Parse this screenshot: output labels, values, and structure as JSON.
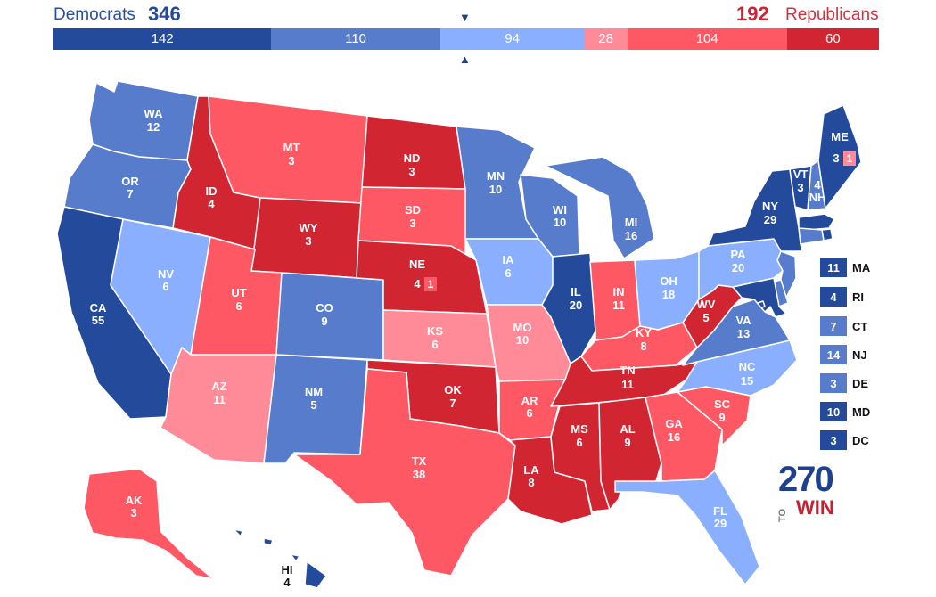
{
  "header": {
    "dem_label": "Democrats",
    "dem_total": "346",
    "rep_total": "192",
    "rep_label": "Republicans"
  },
  "bar": [
    {
      "label": "142",
      "value": 142,
      "color": "#244a9c"
    },
    {
      "label": "110",
      "value": 110,
      "color": "#577ccc"
    },
    {
      "label": "94",
      "value": 94,
      "color": "#8aafff"
    },
    {
      "label": "28",
      "value": 28,
      "color": "#ff8b98"
    },
    {
      "label": "104",
      "value": 104,
      "color": "#ff5865"
    },
    {
      "label": "60",
      "value": 60,
      "color": "#d22532"
    }
  ],
  "colors": {
    "safe_dem": "#244a9c",
    "likely_dem": "#577ccc",
    "lean_dem": "#8aafff",
    "lean_rep": "#ff8b98",
    "likely_rep": "#ff5865",
    "safe_rep": "#d22532"
  },
  "states": [
    {
      "abbr": "WA",
      "ev": "12"
    },
    {
      "abbr": "OR",
      "ev": "7"
    },
    {
      "abbr": "CA",
      "ev": "55"
    },
    {
      "abbr": "NV",
      "ev": "6"
    },
    {
      "abbr": "ID",
      "ev": "4"
    },
    {
      "abbr": "MT",
      "ev": "3"
    },
    {
      "abbr": "WY",
      "ev": "3"
    },
    {
      "abbr": "UT",
      "ev": "6"
    },
    {
      "abbr": "AZ",
      "ev": "11"
    },
    {
      "abbr": "CO",
      "ev": "9"
    },
    {
      "abbr": "NM",
      "ev": "5"
    },
    {
      "abbr": "ND",
      "ev": "3"
    },
    {
      "abbr": "SD",
      "ev": "3"
    },
    {
      "abbr": "NE",
      "ev": "4"
    },
    {
      "abbr": "KS",
      "ev": "6"
    },
    {
      "abbr": "OK",
      "ev": "7"
    },
    {
      "abbr": "TX",
      "ev": "38"
    },
    {
      "abbr": "MN",
      "ev": "10"
    },
    {
      "abbr": "IA",
      "ev": "6"
    },
    {
      "abbr": "MO",
      "ev": "10"
    },
    {
      "abbr": "AR",
      "ev": "6"
    },
    {
      "abbr": "LA",
      "ev": "8"
    },
    {
      "abbr": "WI",
      "ev": "10"
    },
    {
      "abbr": "IL",
      "ev": "20"
    },
    {
      "abbr": "MI",
      "ev": "16"
    },
    {
      "abbr": "IN",
      "ev": "11"
    },
    {
      "abbr": "OH",
      "ev": "18"
    },
    {
      "abbr": "KY",
      "ev": "8"
    },
    {
      "abbr": "TN",
      "ev": "11"
    },
    {
      "abbr": "MS",
      "ev": "6"
    },
    {
      "abbr": "AL",
      "ev": "9"
    },
    {
      "abbr": "GA",
      "ev": "16"
    },
    {
      "abbr": "FL",
      "ev": "29"
    },
    {
      "abbr": "SC",
      "ev": "9"
    },
    {
      "abbr": "NC",
      "ev": "15"
    },
    {
      "abbr": "VA",
      "ev": "13"
    },
    {
      "abbr": "WV",
      "ev": "5"
    },
    {
      "abbr": "PA",
      "ev": "20"
    },
    {
      "abbr": "NY",
      "ev": "29"
    },
    {
      "abbr": "VT",
      "ev": "3"
    },
    {
      "abbr": "NH",
      "ev": "4"
    },
    {
      "abbr": "ME",
      "ev": "3"
    },
    {
      "abbr": "AK",
      "ev": "3"
    },
    {
      "abbr": "HI",
      "ev": "4"
    }
  ],
  "split_votes": {
    "me_district": "1",
    "ne_district": "1"
  },
  "legend": [
    {
      "ev": "11",
      "abbr": "MA",
      "color": "#244a9c"
    },
    {
      "ev": "4",
      "abbr": "RI",
      "color": "#244a9c"
    },
    {
      "ev": "7",
      "abbr": "CT",
      "color": "#577ccc"
    },
    {
      "ev": "14",
      "abbr": "NJ",
      "color": "#577ccc"
    },
    {
      "ev": "3",
      "abbr": "DE",
      "color": "#577ccc"
    },
    {
      "ev": "10",
      "abbr": "MD",
      "color": "#244a9c"
    },
    {
      "ev": "3",
      "abbr": "DC",
      "color": "#244a9c"
    }
  ],
  "logo": {
    "number": "270",
    "to": "TO",
    "win": "WIN"
  }
}
